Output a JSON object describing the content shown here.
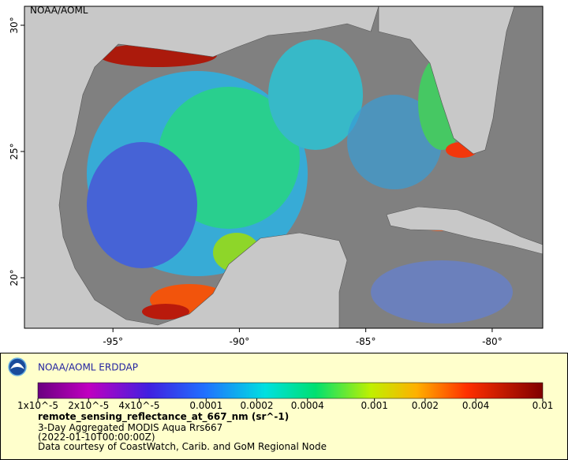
{
  "chart_data": {
    "type": "map",
    "map_label": "NOAA/AOML",
    "title": "NOAA/AOML ERDDAP",
    "xlim": [
      -98.5,
      -78
    ],
    "ylim": [
      18,
      30.75
    ],
    "xticks": [
      {
        "value": -95,
        "label": "-95°"
      },
      {
        "value": -90,
        "label": "-90°"
      },
      {
        "value": -85,
        "label": "-85°"
      },
      {
        "value": -80,
        "label": "-80°"
      }
    ],
    "yticks": [
      {
        "value": 20,
        "label": "20°"
      },
      {
        "value": 25,
        "label": "25°"
      },
      {
        "value": 30,
        "label": "30°"
      }
    ],
    "colorbar": {
      "scale": "log",
      "lim": [
        1e-05,
        0.01
      ],
      "ticks": [
        {
          "value": 1e-05,
          "label": "1x10^-5"
        },
        {
          "value": 2e-05,
          "label": "2x10^-5"
        },
        {
          "value": 4e-05,
          "label": "4x10^-5"
        },
        0.0001,
        0.0002,
        0.0004,
        0.001,
        0.002,
        0.004,
        0.01
      ]
    },
    "variable": "remote_sensing_reflectance_at_667_nm (sr^-1)",
    "notes": [
      "3-Day Aggregated MODIS Aqua Rrs667",
      "(2022-01-10T00:00:00Z)",
      "Data courtesy of CoastWatch, Carib. and GoM Regional Node"
    ]
  }
}
